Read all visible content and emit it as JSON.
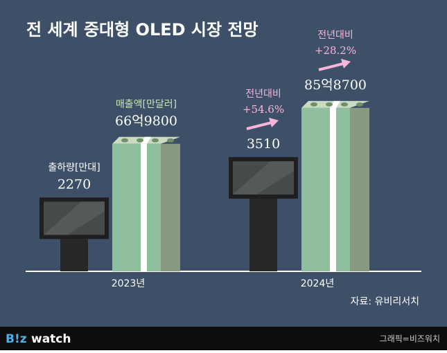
{
  "chart_data": {
    "type": "bar",
    "title": "전 세계 중대형 OLED 시장 전망",
    "categories": [
      "2023년",
      "2024년"
    ],
    "series": [
      {
        "name": "출하량[만대]",
        "values": [
          2270,
          3510
        ],
        "color": "#2b2d2b",
        "change": {
          "label": "전년대비",
          "text": "+54.6%"
        }
      },
      {
        "name": "매출액[만달러]",
        "values": [
          669800,
          858700
        ],
        "value_labels": [
          "66억9800",
          "85억8700"
        ],
        "color": "#8fbf9f",
        "change": {
          "label": "전년대비",
          "text": "+28.2%"
        }
      }
    ],
    "source": "자료: 유비리서치"
  },
  "footer": {
    "logo_left": "B!z",
    "logo_right": "watch",
    "credit": "그래픽=비즈워치"
  }
}
